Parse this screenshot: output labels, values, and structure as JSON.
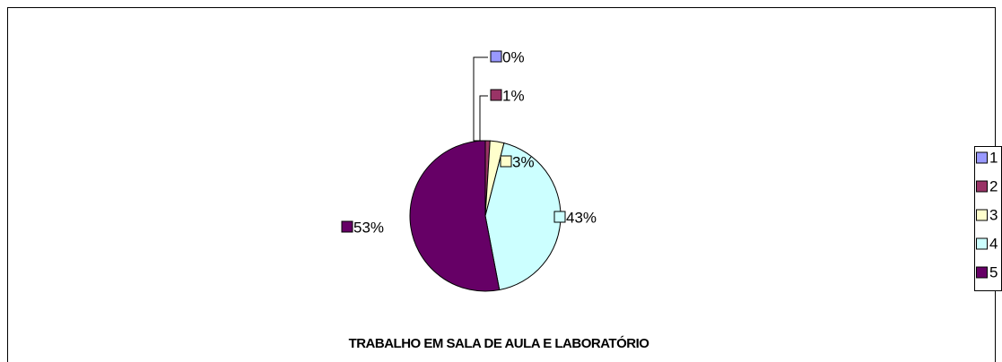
{
  "chart_data": {
    "type": "pie",
    "title": "TRABALHO EM SALA DE AULA E LABORATÓRIO",
    "categories": [
      "1",
      "2",
      "3",
      "4",
      "5"
    ],
    "values": [
      0,
      1,
      3,
      43,
      53
    ],
    "value_labels": [
      "0%",
      "1%",
      "3%",
      "43%",
      "53%"
    ],
    "colors": [
      "#9999ff",
      "#993366",
      "#ffffcc",
      "#ccffff",
      "#660066"
    ],
    "legend": "right"
  }
}
